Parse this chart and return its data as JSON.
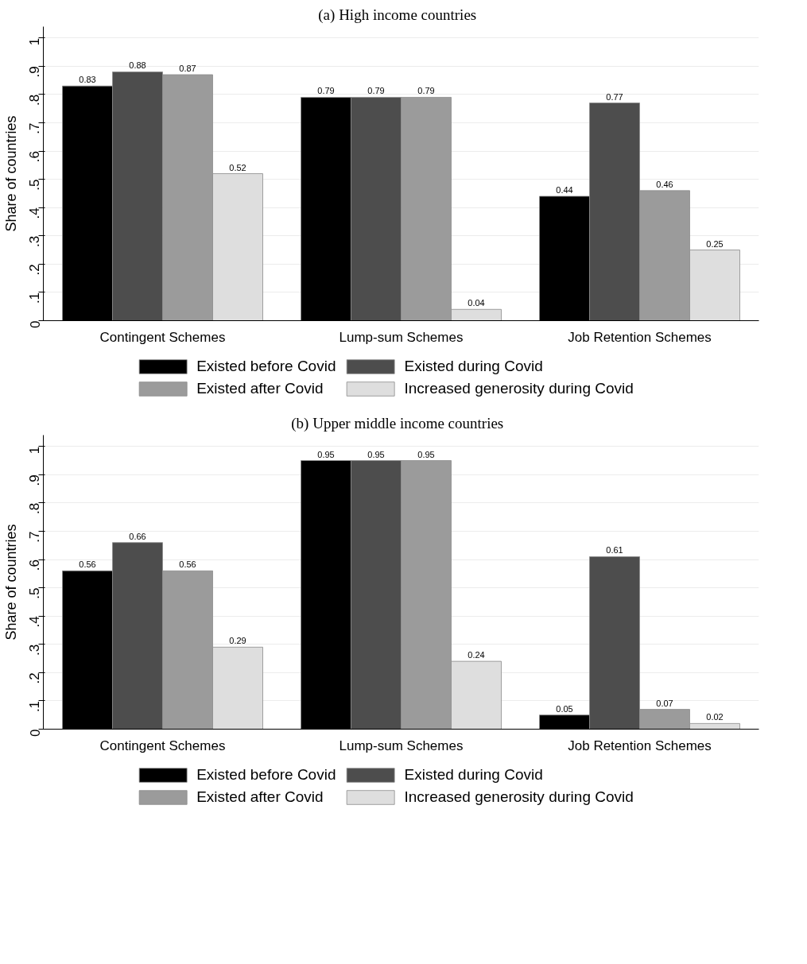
{
  "chart_data": [
    {
      "type": "bar",
      "title": "(a)   High income countries",
      "ylabel": "Share of countries",
      "categories": [
        "Contingent Schemes",
        "Lump-sum Schemes",
        "Job Retention Schemes"
      ],
      "series": [
        {
          "name": "Existed before Covid",
          "color": "#000000",
          "values": [
            0.83,
            0.79,
            0.44
          ]
        },
        {
          "name": "Existed during Covid",
          "color": "#4d4d4d",
          "values": [
            0.88,
            0.79,
            0.77
          ]
        },
        {
          "name": "Existed after Covid",
          "color": "#9b9b9b",
          "values": [
            0.87,
            0.79,
            0.46
          ]
        },
        {
          "name": "Increased generosity during Covid",
          "color": "#dedede",
          "values": [
            0.52,
            0.04,
            0.25
          ]
        }
      ],
      "ylim": [
        0,
        1.04
      ],
      "yticks": [
        0,
        {
          "value": 0.1,
          "label": ".1"
        },
        {
          "value": 0.2,
          "label": ".2"
        },
        {
          "value": 0.3,
          "label": ".3"
        },
        {
          "value": 0.4,
          "label": ".4"
        },
        {
          "value": 0.5,
          "label": ".5"
        },
        {
          "value": 0.6,
          "label": ".6"
        },
        {
          "value": 0.7,
          "label": ".7"
        },
        {
          "value": 0.8,
          "label": ".8"
        },
        {
          "value": 0.9,
          "label": ".9"
        },
        1
      ],
      "grid": "y",
      "legend": "bottom",
      "data_labels": true
    },
    {
      "type": "bar",
      "title": "(b)   Upper middle income countries",
      "ylabel": "Share of countries",
      "categories": [
        "Contingent Schemes",
        "Lump-sum Schemes",
        "Job Retention Schemes"
      ],
      "series": [
        {
          "name": "Existed before Covid",
          "color": "#000000",
          "values": [
            0.56,
            0.95,
            0.05
          ]
        },
        {
          "name": "Existed during Covid",
          "color": "#4d4d4d",
          "values": [
            0.66,
            0.95,
            0.61
          ]
        },
        {
          "name": "Existed after Covid",
          "color": "#9b9b9b",
          "values": [
            0.56,
            0.95,
            0.07
          ]
        },
        {
          "name": "Increased generosity during Covid",
          "color": "#dedede",
          "values": [
            0.29,
            0.24,
            0.02
          ]
        }
      ],
      "ylim": [
        0,
        1.04
      ],
      "yticks": [
        0,
        {
          "value": 0.1,
          "label": ".1"
        },
        {
          "value": 0.2,
          "label": ".2"
        },
        {
          "value": 0.3,
          "label": ".3"
        },
        {
          "value": 0.4,
          "label": ".4"
        },
        {
          "value": 0.5,
          "label": ".5"
        },
        {
          "value": 0.6,
          "label": ".6"
        },
        {
          "value": 0.7,
          "label": ".7"
        },
        {
          "value": 0.8,
          "label": ".8"
        },
        {
          "value": 0.9,
          "label": ".9"
        },
        1
      ],
      "grid": "y",
      "legend": "bottom",
      "data_labels": true
    }
  ]
}
